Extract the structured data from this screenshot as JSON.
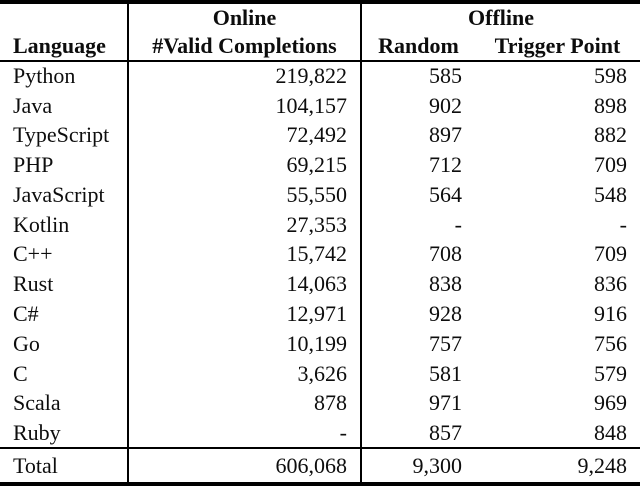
{
  "page": {
    "background": "#ffffff",
    "colors": {
      "text": "#0d0d0d",
      "rules": "#000000"
    }
  },
  "table": {
    "group_headers": {
      "online": "Online",
      "offline": "Offline"
    },
    "column_headers": {
      "language": "Language",
      "valid_completions": "#Valid Completions",
      "random": "Random",
      "trigger_point": "Trigger Point"
    },
    "missing_value_marker": "-",
    "rows": [
      {
        "language": "Python",
        "valid_completions": "219,822",
        "random": "585",
        "trigger_point": "598"
      },
      {
        "language": "Java",
        "valid_completions": "104,157",
        "random": "902",
        "trigger_point": "898"
      },
      {
        "language": "TypeScript",
        "valid_completions": "72,492",
        "random": "897",
        "trigger_point": "882"
      },
      {
        "language": "PHP",
        "valid_completions": "69,215",
        "random": "712",
        "trigger_point": "709"
      },
      {
        "language": "JavaScript",
        "valid_completions": "55,550",
        "random": "564",
        "trigger_point": "548"
      },
      {
        "language": "Kotlin",
        "valid_completions": "27,353",
        "random": "-",
        "trigger_point": "-"
      },
      {
        "language": "C++",
        "valid_completions": "15,742",
        "random": "708",
        "trigger_point": "709"
      },
      {
        "language": "Rust",
        "valid_completions": "14,063",
        "random": "838",
        "trigger_point": "836"
      },
      {
        "language": "C#",
        "valid_completions": "12,971",
        "random": "928",
        "trigger_point": "916"
      },
      {
        "language": "Go",
        "valid_completions": "10,199",
        "random": "757",
        "trigger_point": "756"
      },
      {
        "language": "C",
        "valid_completions": "3,626",
        "random": "581",
        "trigger_point": "579"
      },
      {
        "language": "Scala",
        "valid_completions": "878",
        "random": "971",
        "trigger_point": "969"
      },
      {
        "language": "Ruby",
        "valid_completions": "-",
        "random": "857",
        "trigger_point": "848"
      }
    ],
    "total_row": {
      "label": "Total",
      "valid_completions": "606,068",
      "random": "9,300",
      "trigger_point": "9,248"
    }
  }
}
